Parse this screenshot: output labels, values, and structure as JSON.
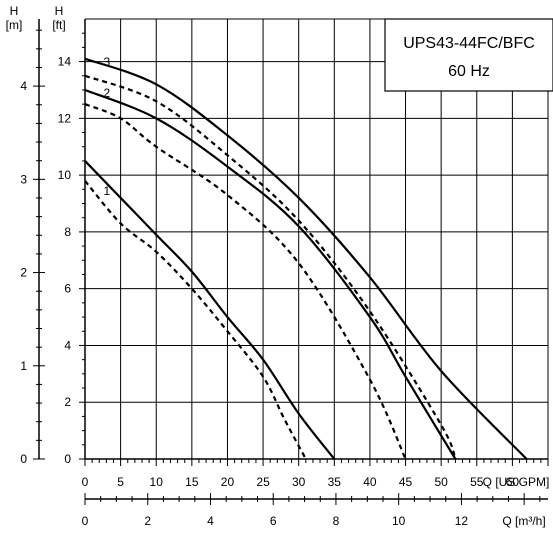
{
  "chart_data": {
    "type": "line",
    "title_lines": [
      "UPS43-44FC/BFC",
      "60 Hz"
    ],
    "x_axis_gpm": {
      "label": "Q [US GPM]",
      "range": [
        0,
        65
      ],
      "ticks": [
        0,
        5,
        10,
        15,
        20,
        25,
        30,
        35,
        40,
        45,
        50,
        55,
        60
      ]
    },
    "x_axis_m3h": {
      "label": "Q [m³/h]",
      "range": [
        0,
        14.76
      ],
      "ticks": [
        0,
        2,
        4,
        6,
        8,
        10,
        12
      ]
    },
    "y_axis_ft": {
      "label_unit": "H",
      "label_dim": "[ft]",
      "range": [
        0,
        15.5
      ],
      "ticks": [
        0,
        2,
        4,
        6,
        8,
        10,
        12,
        14
      ]
    },
    "y_axis_m": {
      "label_unit": "H",
      "label_dim": "[m]",
      "range": [
        0,
        4.72
      ],
      "ticks": [
        0,
        1,
        2,
        3,
        4
      ]
    },
    "grid": true,
    "series": [
      {
        "name": "1",
        "style": "solid",
        "points": [
          [
            0,
            10.5
          ],
          [
            5,
            9.2
          ],
          [
            10,
            7.9
          ],
          [
            15,
            6.6
          ],
          [
            20,
            5.0
          ],
          [
            25,
            3.5
          ],
          [
            30,
            1.6
          ],
          [
            35,
            0
          ]
        ]
      },
      {
        "name": "1",
        "style": "dashed",
        "points": [
          [
            0,
            9.8
          ],
          [
            5,
            8.3
          ],
          [
            10,
            7.3
          ],
          [
            15,
            6.0
          ],
          [
            20,
            4.5
          ],
          [
            25,
            2.9
          ],
          [
            28,
            1.4
          ],
          [
            31,
            0
          ]
        ]
      },
      {
        "name": "2",
        "style": "solid",
        "points": [
          [
            0,
            13.0
          ],
          [
            10,
            12.0
          ],
          [
            20,
            10.3
          ],
          [
            30,
            8.2
          ],
          [
            40,
            5.0
          ],
          [
            45,
            2.9
          ],
          [
            52,
            0
          ]
        ]
      },
      {
        "name": "2",
        "style": "dashed",
        "points": [
          [
            0,
            12.5
          ],
          [
            5,
            12.0
          ],
          [
            10,
            11.0
          ],
          [
            20,
            9.3
          ],
          [
            30,
            6.9
          ],
          [
            40,
            2.8
          ],
          [
            45,
            0
          ]
        ]
      },
      {
        "name": "3",
        "style": "solid",
        "points": [
          [
            0,
            14.1
          ],
          [
            10,
            13.2
          ],
          [
            20,
            11.4
          ],
          [
            30,
            9.2
          ],
          [
            40,
            6.4
          ],
          [
            50,
            3.1
          ],
          [
            62,
            0
          ]
        ]
      },
      {
        "name": "3",
        "style": "dashed",
        "points": [
          [
            0,
            13.5
          ],
          [
            10,
            12.6
          ],
          [
            20,
            10.7
          ],
          [
            30,
            8.4
          ],
          [
            40,
            5.2
          ],
          [
            50,
            1.2
          ],
          [
            52,
            0
          ]
        ]
      }
    ]
  }
}
